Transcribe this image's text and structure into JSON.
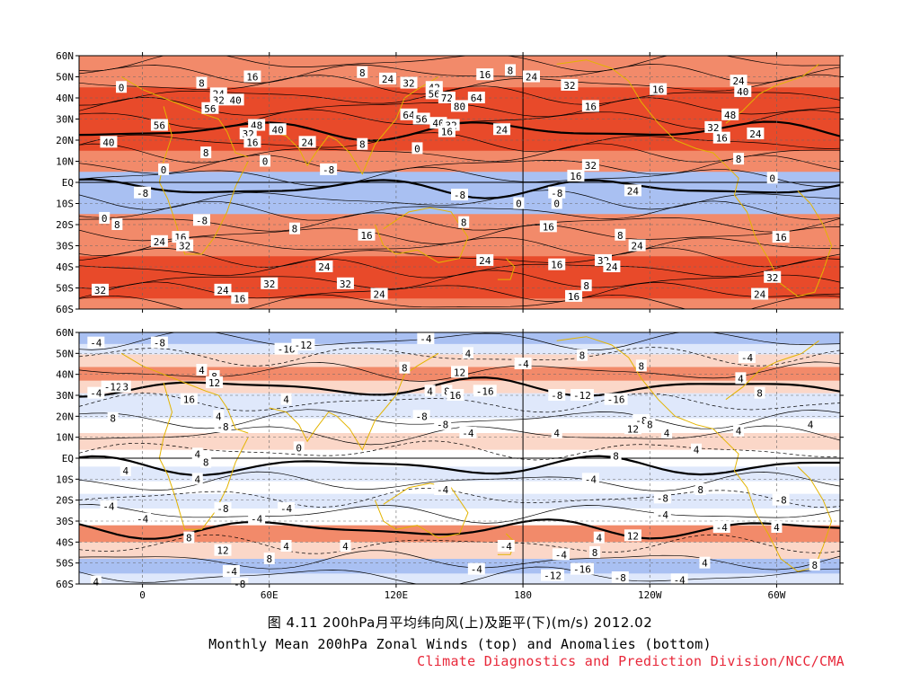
{
  "figure": {
    "caption_cn": "图 4.11 200hPa月平均纬向风(上)及距平(下)(m/s)  2012.02",
    "caption_en": "Monthly Mean 200hPa Zonal Winds (top) and Anomalies (bottom)",
    "credit": "Climate Diagnostics and Prediction Division/NCC/CMA",
    "colors": {
      "credit": "#e8283a",
      "coastline": "#e3b400",
      "positive_strong": "#e84a2a",
      "positive_mid": "#f28a6a",
      "positive_light": "#fbd7c8",
      "negative_light": "#dfe8fb",
      "negative_mid": "#a9c0f2",
      "negative_strong": "#2e5fd6"
    }
  },
  "chart_data": [
    {
      "type": "heatmap",
      "title": "",
      "x_axis": {
        "ticks": [
          "0",
          "60E",
          "120E",
          "180",
          "120W",
          "60W"
        ],
        "range_deg_east": [
          -30,
          330
        ]
      },
      "y_axis": {
        "ticks": [
          "60N",
          "50N",
          "40N",
          "30N",
          "20N",
          "10N",
          "EQ",
          "10S",
          "20S",
          "30S",
          "40S",
          "50S",
          "60S"
        ],
        "range_deg": [
          60,
          -60
        ]
      },
      "units": "m/s",
      "grid": true,
      "contour_interval": 8,
      "zonal_profile": [
        {
          "lat": 60,
          "u": 18
        },
        {
          "lat": 50,
          "u": 22
        },
        {
          "lat": 40,
          "u": 38
        },
        {
          "lat": 30,
          "u": 44
        },
        {
          "lat": 20,
          "u": 30
        },
        {
          "lat": 10,
          "u": 10
        },
        {
          "lat": 0,
          "u": -4
        },
        {
          "lat": -10,
          "u": -2
        },
        {
          "lat": -20,
          "u": 8
        },
        {
          "lat": -30,
          "u": 18
        },
        {
          "lat": -40,
          "u": 26
        },
        {
          "lat": -50,
          "u": 28
        },
        {
          "lat": -60,
          "u": 22
        }
      ],
      "labels": [
        {
          "lon": -10,
          "lat": 45,
          "text": "0"
        },
        {
          "lon": 28,
          "lat": 47,
          "text": "8"
        },
        {
          "lon": 52,
          "lat": 50,
          "text": "16"
        },
        {
          "lon": 104,
          "lat": 52,
          "text": "8"
        },
        {
          "lon": 116,
          "lat": 49,
          "text": "24"
        },
        {
          "lon": 126,
          "lat": 47,
          "text": "32"
        },
        {
          "lon": 138,
          "lat": 45,
          "text": "42"
        },
        {
          "lon": 162,
          "lat": 51,
          "text": "16"
        },
        {
          "lon": 174,
          "lat": 53,
          "text": "8"
        },
        {
          "lon": 184,
          "lat": 50,
          "text": "24"
        },
        {
          "lon": 202,
          "lat": 46,
          "text": "32"
        },
        {
          "lon": 244,
          "lat": 44,
          "text": "16"
        },
        {
          "lon": 282,
          "lat": 48,
          "text": "24"
        },
        {
          "lon": 284,
          "lat": 43,
          "text": "40"
        },
        {
          "lon": 36,
          "lat": 42,
          "text": "24"
        },
        {
          "lon": 36,
          "lat": 39,
          "text": "32"
        },
        {
          "lon": 44,
          "lat": 39,
          "text": "40"
        },
        {
          "lon": 32,
          "lat": 35,
          "text": "56"
        },
        {
          "lon": 138,
          "lat": 42,
          "text": "56"
        },
        {
          "lon": 144,
          "lat": 40,
          "text": "72"
        },
        {
          "lon": 150,
          "lat": 36,
          "text": "80"
        },
        {
          "lon": 158,
          "lat": 40,
          "text": "64"
        },
        {
          "lon": 126,
          "lat": 32,
          "text": "64"
        },
        {
          "lon": 132,
          "lat": 30,
          "text": "56"
        },
        {
          "lon": 140,
          "lat": 28,
          "text": "40"
        },
        {
          "lon": 146,
          "lat": 27,
          "text": "32"
        },
        {
          "lon": 144,
          "lat": 24,
          "text": "16"
        },
        {
          "lon": 170,
          "lat": 25,
          "text": "24"
        },
        {
          "lon": 212,
          "lat": 36,
          "text": "16"
        },
        {
          "lon": 278,
          "lat": 32,
          "text": "48"
        },
        {
          "lon": 270,
          "lat": 26,
          "text": "32"
        },
        {
          "lon": 290,
          "lat": 23,
          "text": "24"
        },
        {
          "lon": 274,
          "lat": 21,
          "text": "16"
        },
        {
          "lon": 8,
          "lat": 27,
          "text": "56"
        },
        {
          "lon": -16,
          "lat": 19,
          "text": "40"
        },
        {
          "lon": 54,
          "lat": 27,
          "text": "48"
        },
        {
          "lon": 64,
          "lat": 25,
          "text": "40"
        },
        {
          "lon": 50,
          "lat": 23,
          "text": "32"
        },
        {
          "lon": 52,
          "lat": 19,
          "text": "16"
        },
        {
          "lon": 78,
          "lat": 19,
          "text": "24"
        },
        {
          "lon": 104,
          "lat": 18,
          "text": "8"
        },
        {
          "lon": 30,
          "lat": 14,
          "text": "8"
        },
        {
          "lon": 130,
          "lat": 16,
          "text": "0"
        },
        {
          "lon": 58,
          "lat": 10,
          "text": "0"
        },
        {
          "lon": 10,
          "lat": 6,
          "text": "0"
        },
        {
          "lon": 88,
          "lat": 6,
          "text": "-8"
        },
        {
          "lon": 212,
          "lat": 8,
          "text": "32"
        },
        {
          "lon": 205,
          "lat": 3,
          "text": "16"
        },
        {
          "lon": 282,
          "lat": 11,
          "text": "8"
        },
        {
          "lon": 232,
          "lat": -4,
          "text": "24"
        },
        {
          "lon": 298,
          "lat": 2,
          "text": "0"
        },
        {
          "lon": 0,
          "lat": -5,
          "text": "-8"
        },
        {
          "lon": 150,
          "lat": -6,
          "text": "-8"
        },
        {
          "lon": 178,
          "lat": -10,
          "text": "0"
        },
        {
          "lon": 196,
          "lat": -10,
          "text": "0"
        },
        {
          "lon": 196,
          "lat": -5,
          "text": "-8"
        },
        {
          "lon": -18,
          "lat": -17,
          "text": "0"
        },
        {
          "lon": -12,
          "lat": -20,
          "text": "8"
        },
        {
          "lon": 28,
          "lat": -18,
          "text": "-8"
        },
        {
          "lon": 72,
          "lat": -22,
          "text": "8"
        },
        {
          "lon": 152,
          "lat": -19,
          "text": "8"
        },
        {
          "lon": 192,
          "lat": -21,
          "text": "16"
        },
        {
          "lon": 226,
          "lat": -25,
          "text": "8"
        },
        {
          "lon": 234,
          "lat": -30,
          "text": "24"
        },
        {
          "lon": 8,
          "lat": -28,
          "text": "24"
        },
        {
          "lon": 18,
          "lat": -26,
          "text": "16"
        },
        {
          "lon": 20,
          "lat": -30,
          "text": "32"
        },
        {
          "lon": 106,
          "lat": -25,
          "text": "16"
        },
        {
          "lon": 302,
          "lat": -26,
          "text": "16"
        },
        {
          "lon": 162,
          "lat": -37,
          "text": "24"
        },
        {
          "lon": 196,
          "lat": -39,
          "text": "16"
        },
        {
          "lon": 218,
          "lat": -37,
          "text": "32"
        },
        {
          "lon": 222,
          "lat": -40,
          "text": "24"
        },
        {
          "lon": 86,
          "lat": -40,
          "text": "24"
        },
        {
          "lon": 298,
          "lat": -45,
          "text": "32"
        },
        {
          "lon": 60,
          "lat": -48,
          "text": "32"
        },
        {
          "lon": 96,
          "lat": -48,
          "text": "32"
        },
        {
          "lon": 210,
          "lat": -49,
          "text": "8"
        },
        {
          "lon": 204,
          "lat": -54,
          "text": "16"
        },
        {
          "lon": 292,
          "lat": -53,
          "text": "24"
        },
        {
          "lon": -20,
          "lat": -51,
          "text": "32"
        },
        {
          "lon": 38,
          "lat": -51,
          "text": "24"
        },
        {
          "lon": 46,
          "lat": -55,
          "text": "16"
        },
        {
          "lon": 112,
          "lat": -53,
          "text": "24"
        }
      ]
    },
    {
      "type": "heatmap",
      "title": "",
      "x_axis": {
        "ticks": [
          "0",
          "60E",
          "120E",
          "180",
          "120W",
          "60W"
        ],
        "range_deg_east": [
          -30,
          330
        ]
      },
      "y_axis": {
        "ticks": [
          "60N",
          "50N",
          "40N",
          "30N",
          "20N",
          "10N",
          "EQ",
          "10S",
          "20S",
          "30S",
          "40S",
          "50S",
          "60S"
        ],
        "range_deg": [
          60,
          -60
        ]
      },
      "units": "m/s",
      "grid": true,
      "contour_interval": 4,
      "anomaly_bands": [
        {
          "lat": 57,
          "u": -10
        },
        {
          "lat": 52,
          "u": -6
        },
        {
          "lat": 47,
          "u": 4
        },
        {
          "lat": 40,
          "u": 8
        },
        {
          "lat": 34,
          "u": 4
        },
        {
          "lat": 28,
          "u": -4
        },
        {
          "lat": 22,
          "u": -6
        },
        {
          "lat": 16,
          "u": -2
        },
        {
          "lat": 8,
          "u": 4
        },
        {
          "lat": 0,
          "u": 0
        },
        {
          "lat": -8,
          "u": -4
        },
        {
          "lat": -14,
          "u": -2
        },
        {
          "lat": -20,
          "u": -4
        },
        {
          "lat": -28,
          "u": 2
        },
        {
          "lat": -36,
          "u": 8
        },
        {
          "lat": -44,
          "u": 4
        },
        {
          "lat": -52,
          "u": -8
        },
        {
          "lat": -58,
          "u": -4
        }
      ],
      "labels": [
        {
          "lon": -22,
          "lat": 55,
          "text": "-4"
        },
        {
          "lon": 8,
          "lat": 55,
          "text": "-8"
        },
        {
          "lon": 68,
          "lat": 52,
          "text": "-16"
        },
        {
          "lon": 76,
          "lat": 54,
          "text": "-12"
        },
        {
          "lon": 134,
          "lat": 57,
          "text": "-4"
        },
        {
          "lon": 154,
          "lat": 50,
          "text": "4"
        },
        {
          "lon": 208,
          "lat": 49,
          "text": "8"
        },
        {
          "lon": 286,
          "lat": 48,
          "text": "-4"
        },
        {
          "lon": 124,
          "lat": 43,
          "text": "8"
        },
        {
          "lon": 150,
          "lat": 41,
          "text": "12"
        },
        {
          "lon": 180,
          "lat": 45,
          "text": "-4"
        },
        {
          "lon": 236,
          "lat": 44,
          "text": "8"
        },
        {
          "lon": 283,
          "lat": 38,
          "text": "4"
        },
        {
          "lon": -14,
          "lat": 34,
          "text": "-12"
        },
        {
          "lon": -8,
          "lat": 34,
          "text": "3"
        },
        {
          "lon": 28,
          "lat": 42,
          "text": "4"
        },
        {
          "lon": 34,
          "lat": 39,
          "text": "8"
        },
        {
          "lon": 34,
          "lat": 36,
          "text": "12"
        },
        {
          "lon": 22,
          "lat": 28,
          "text": "16"
        },
        {
          "lon": 68,
          "lat": 28,
          "text": "4"
        },
        {
          "lon": 136,
          "lat": 32,
          "text": "4"
        },
        {
          "lon": 144,
          "lat": 32,
          "text": "8"
        },
        {
          "lon": 148,
          "lat": 30,
          "text": "16"
        },
        {
          "lon": 162,
          "lat": 32,
          "text": "-16"
        },
        {
          "lon": 208,
          "lat": 30,
          "text": "-12"
        },
        {
          "lon": 224,
          "lat": 28,
          "text": "-16"
        },
        {
          "lon": 196,
          "lat": 30,
          "text": "-8"
        },
        {
          "lon": 292,
          "lat": 31,
          "text": "8"
        },
        {
          "lon": -22,
          "lat": 31,
          "text": "-4"
        },
        {
          "lon": -14,
          "lat": 19,
          "text": "8"
        },
        {
          "lon": 36,
          "lat": 20,
          "text": "4"
        },
        {
          "lon": 38,
          "lat": 15,
          "text": "-8"
        },
        {
          "lon": 132,
          "lat": 20,
          "text": "-8"
        },
        {
          "lon": 142,
          "lat": 16,
          "text": "-8"
        },
        {
          "lon": 154,
          "lat": 12,
          "text": "-4"
        },
        {
          "lon": 236,
          "lat": 18,
          "text": "-8"
        },
        {
          "lon": 232,
          "lat": 14,
          "text": "12"
        },
        {
          "lon": 240,
          "lat": 16,
          "text": "8"
        },
        {
          "lon": 282,
          "lat": 13,
          "text": "4"
        },
        {
          "lon": 316,
          "lat": 16,
          "text": "4"
        },
        {
          "lon": 74,
          "lat": 5,
          "text": "0"
        },
        {
          "lon": 26,
          "lat": 2,
          "text": "4"
        },
        {
          "lon": 30,
          "lat": -2,
          "text": "8"
        },
        {
          "lon": 196,
          "lat": 12,
          "text": "4"
        },
        {
          "lon": 224,
          "lat": 1,
          "text": "8"
        },
        {
          "lon": 248,
          "lat": 12,
          "text": "4"
        },
        {
          "lon": 262,
          "lat": 4,
          "text": "4"
        },
        {
          "lon": -8,
          "lat": -6,
          "text": "4"
        },
        {
          "lon": 26,
          "lat": -10,
          "text": "4"
        },
        {
          "lon": 142,
          "lat": -15,
          "text": "-4"
        },
        {
          "lon": 212,
          "lat": -10,
          "text": "-4"
        },
        {
          "lon": 246,
          "lat": -19,
          "text": "-8"
        },
        {
          "lon": 264,
          "lat": -15,
          "text": "8"
        },
        {
          "lon": 302,
          "lat": -20,
          "text": "-8"
        },
        {
          "lon": -16,
          "lat": -23,
          "text": "-4"
        },
        {
          "lon": 38,
          "lat": -24,
          "text": "-8"
        },
        {
          "lon": 54,
          "lat": -29,
          "text": "-4"
        },
        {
          "lon": 68,
          "lat": -24,
          "text": "-4"
        },
        {
          "lon": 274,
          "lat": -33,
          "text": "-4"
        },
        {
          "lon": 246,
          "lat": -27,
          "text": "-4"
        },
        {
          "lon": 216,
          "lat": -38,
          "text": "4"
        },
        {
          "lon": 232,
          "lat": -37,
          "text": "12"
        },
        {
          "lon": 300,
          "lat": -33,
          "text": "4"
        },
        {
          "lon": 0,
          "lat": -29,
          "text": "-4"
        },
        {
          "lon": 22,
          "lat": -38,
          "text": "8"
        },
        {
          "lon": 38,
          "lat": -44,
          "text": "12"
        },
        {
          "lon": 68,
          "lat": -42,
          "text": "4"
        },
        {
          "lon": 96,
          "lat": -42,
          "text": "4"
        },
        {
          "lon": 172,
          "lat": -42,
          "text": "-4"
        },
        {
          "lon": 214,
          "lat": -45,
          "text": "8"
        },
        {
          "lon": 266,
          "lat": -50,
          "text": "4"
        },
        {
          "lon": 318,
          "lat": -51,
          "text": "8"
        },
        {
          "lon": 60,
          "lat": -48,
          "text": "8"
        },
        {
          "lon": 42,
          "lat": -54,
          "text": "-4"
        },
        {
          "lon": 158,
          "lat": -53,
          "text": "-4"
        },
        {
          "lon": 198,
          "lat": -46,
          "text": "-4"
        },
        {
          "lon": 208,
          "lat": -53,
          "text": "-16"
        },
        {
          "lon": 194,
          "lat": -56,
          "text": "-12"
        },
        {
          "lon": 226,
          "lat": -57,
          "text": "-8"
        },
        {
          "lon": 254,
          "lat": -58,
          "text": "-4"
        },
        {
          "lon": -22,
          "lat": -59,
          "text": "4"
        },
        {
          "lon": 46,
          "lat": -60,
          "text": "-8"
        }
      ]
    }
  ]
}
